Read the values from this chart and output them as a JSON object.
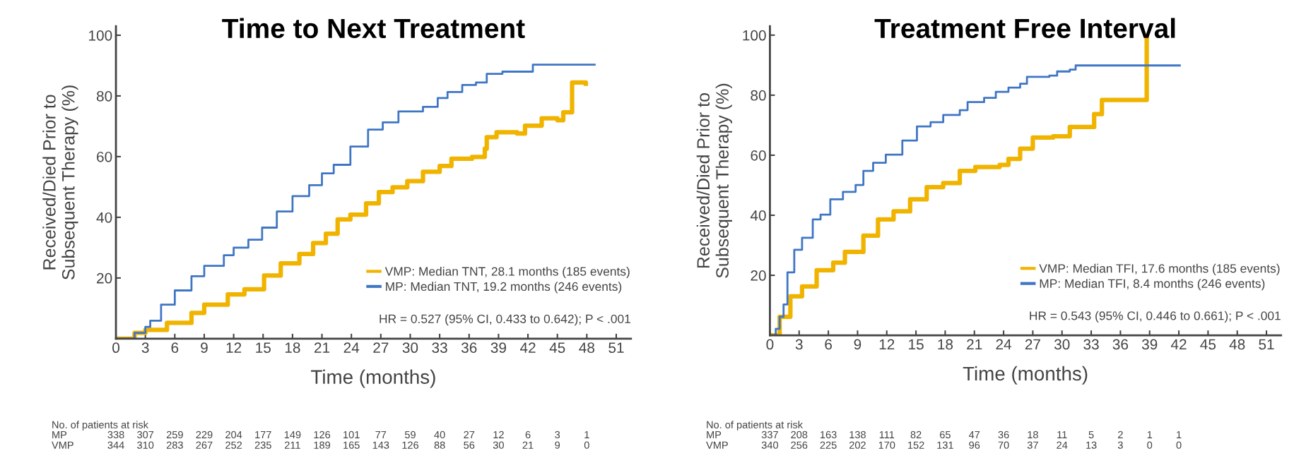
{
  "chart_data": [
    {
      "type": "step",
      "title": "Time to Next Treatment",
      "xlabel": "Time (months)",
      "ylabel": "Received/Died Prior to\nSubsequent Therapy (%)",
      "xlim": [
        0,
        52.5
      ],
      "ylim": [
        0,
        103
      ],
      "xticks": [
        0,
        3,
        6,
        9,
        12,
        15,
        18,
        21,
        24,
        27,
        30,
        33,
        36,
        39,
        42,
        45,
        48,
        51
      ],
      "yticks": [
        20,
        40,
        60,
        80,
        100
      ],
      "grid": false,
      "legend": "bottom right",
      "series": [
        {
          "name": "VMP: Median TNT, 28.1 months (185 events)",
          "color": "#f0b400",
          "x": [
            0,
            1.9,
            3,
            5.2,
            7.7,
            9,
            11.4,
            13.1,
            15.1,
            16.8,
            18.7,
            20.1,
            21.4,
            22.6,
            23.9,
            25.5,
            26.8,
            28.2,
            29.7,
            31.3,
            33,
            34.2,
            36.3,
            37.6,
            37.8,
            38.8,
            40.9,
            41.7,
            43.4,
            45,
            45.6,
            46.5,
            46.5,
            47.9
          ],
          "values": [
            0,
            1.9,
            2.9,
            5.2,
            8.5,
            11.2,
            14.6,
            16.3,
            20.8,
            24.8,
            27.9,
            31.5,
            34.6,
            39.3,
            40.9,
            44.6,
            48.3,
            49.9,
            51.9,
            55,
            56.9,
            59.3,
            59.9,
            62.6,
            66.4,
            68,
            67.6,
            70.2,
            72.6,
            72,
            74.6,
            74.6,
            84.4,
            84
          ]
        },
        {
          "name": "MP: Median TNT, 19.2 months (246 events)",
          "color": "#3f76c4",
          "x": [
            0,
            1.9,
            3,
            3.5,
            4.6,
            6,
            7.7,
            9,
            11,
            12,
            13.5,
            14.9,
            16.4,
            18,
            19.7,
            21,
            22.2,
            23.9,
            25.7,
            27.2,
            28.8,
            31.3,
            32.8,
            33.8,
            35.3,
            36.7,
            37.8,
            39.4,
            42.1,
            42.5,
            48.8
          ],
          "values": [
            0,
            1.9,
            3.9,
            5.9,
            11.2,
            15.9,
            20.6,
            24,
            27.5,
            30,
            32.6,
            36.6,
            41.9,
            47,
            50.6,
            54.5,
            57.3,
            63.3,
            68.9,
            71.3,
            74.9,
            76.4,
            79.3,
            81.3,
            83.6,
            84.4,
            87.3,
            88,
            88,
            90.3,
            90.3
          ]
        }
      ],
      "annotations": [
        "HR = 0.527 (95% CI, 0.433 to 0.642); P < .001",
        "No. of patients at risk",
        "MP",
        "338 307 259 229 204 177 149 126 101 77 59 40 27 12 6 3 1",
        "VMP",
        "344 310 283 267 252 235 211 189 165 143 126 88 56 30 21 9 0"
      ]
    },
    {
      "type": "step",
      "title": "Treatment Free Interval",
      "xlabel": "Time (months)",
      "ylabel": "Received/Died Prior to\nSubsequent Therapy (%)",
      "xlim": [
        0,
        52.5
      ],
      "ylim": [
        0,
        103
      ],
      "xticks": [
        0,
        3,
        6,
        9,
        12,
        15,
        18,
        21,
        24,
        27,
        30,
        33,
        36,
        39,
        42,
        45,
        48,
        51
      ],
      "yticks": [
        20,
        40,
        60,
        80,
        100
      ],
      "grid": false,
      "legend": "bottom right",
      "series": [
        {
          "name": "VMP: Median TFI, 17.6 months (185 events)",
          "color": "#f0b400",
          "x": [
            0,
            1,
            2.1,
            3.3,
            4.8,
            6.5,
            7.7,
            9.6,
            11.1,
            12.7,
            14.4,
            16.1,
            17.8,
            19.5,
            21.1,
            23.6,
            24.5,
            25.7,
            27,
            29.1,
            30.8,
            32.7,
            33.3,
            34.1,
            38.7,
            38.7
          ],
          "values": [
            0,
            6.2,
            13,
            16.3,
            21.7,
            24.2,
            27.8,
            33.2,
            38.6,
            41.3,
            45.3,
            49.4,
            50.7,
            54.8,
            56.1,
            56.8,
            58.8,
            62.2,
            65.9,
            66.3,
            69.4,
            69.4,
            73.7,
            78.4,
            78.4,
            100
          ]
        },
        {
          "name": "MP: Median TFI, 8.4 months (246 events)",
          "color": "#3f76c4",
          "x": [
            0,
            0.6,
            1,
            1.4,
            1.8,
            2.5,
            3.3,
            4.4,
            5.2,
            6.2,
            7.5,
            8.8,
            9.6,
            10.6,
            11.9,
            13.6,
            15.1,
            16.5,
            17.8,
            19.5,
            20.3,
            22,
            23.2,
            24.5,
            25.7,
            26.4,
            28.7,
            29.5,
            30.8,
            31.4,
            42.1
          ],
          "values": [
            0,
            2.2,
            6.2,
            10.3,
            21,
            28.5,
            32.5,
            38.6,
            40.2,
            45.3,
            47.8,
            50.1,
            54.8,
            57.5,
            60.2,
            64.9,
            69.6,
            71,
            73.4,
            75,
            77.7,
            79.1,
            81.1,
            82.5,
            83.8,
            86.1,
            86.5,
            87.9,
            88.5,
            89.9,
            89.9
          ]
        }
      ],
      "annotations": [
        "HR = 0.543 (95% CI, 0.446 to 0.661); P < .001",
        "No. of patients at risk",
        "MP",
        "337 208 163 138 111 82 65 47 36 18 11 5 2 1 1",
        "VMP",
        "340 256 225 202 170 152 131 96 70 37 24 13 3 0 0"
      ]
    }
  ]
}
